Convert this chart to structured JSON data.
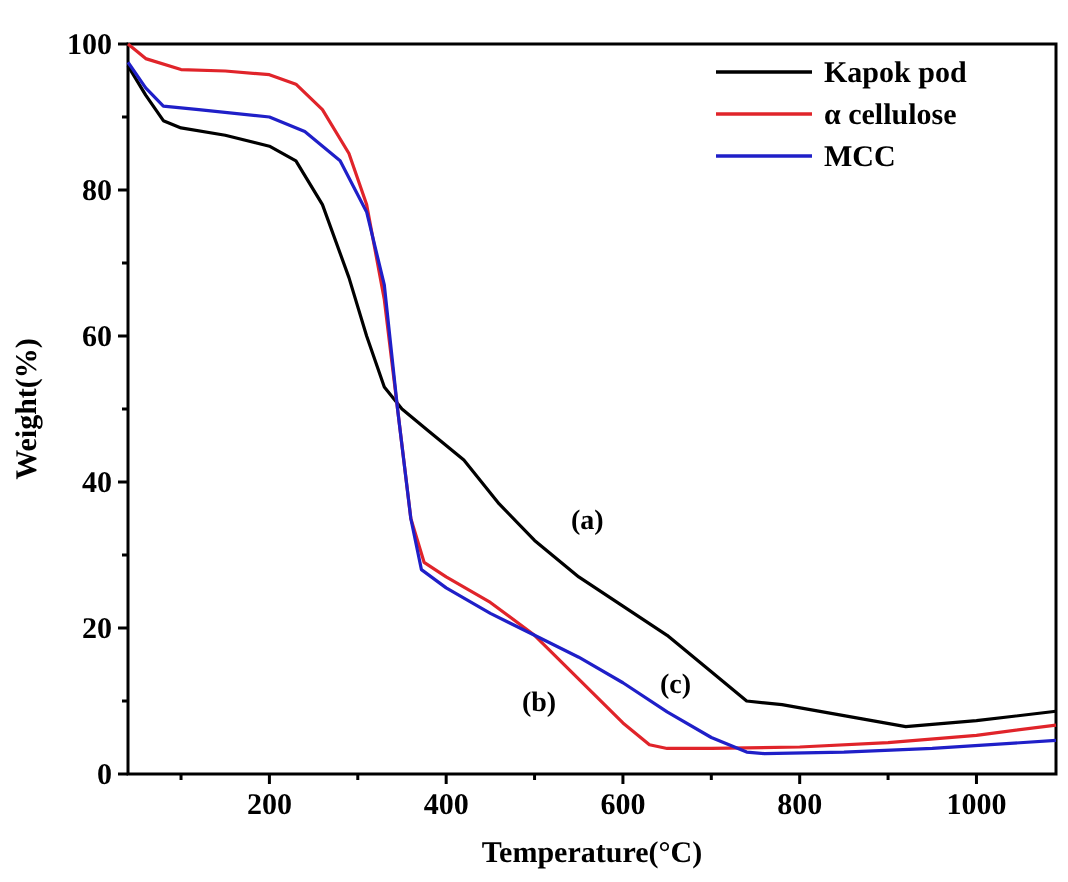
{
  "chart_data": {
    "type": "line",
    "xlabel": "Temperature(°C)",
    "ylabel": "Weight(%)",
    "xlim": [
      40,
      1090
    ],
    "ylim": [
      0,
      100
    ],
    "xticks": [
      {
        "value": 100,
        "label": null
      },
      200,
      {
        "value": 300,
        "label": null
      },
      400,
      {
        "value": 500,
        "label": null
      },
      600,
      {
        "value": 700,
        "label": null
      },
      800,
      {
        "value": 900,
        "label": null
      },
      1000
    ],
    "yticks": [
      0,
      {
        "value": 10,
        "label": null
      },
      20,
      {
        "value": 30,
        "label": null
      },
      40,
      {
        "value": 50,
        "label": null
      },
      60,
      {
        "value": 70,
        "label": null
      },
      80,
      {
        "value": 90,
        "label": null
      },
      100
    ],
    "grid": false,
    "legend": "top right",
    "marker": "none",
    "line_style": "solid",
    "series": [
      {
        "name": "Kapok pod",
        "color": "#000000",
        "x": [
          40,
          60,
          80,
          100,
          150,
          200,
          230,
          260,
          290,
          310,
          330,
          350,
          380,
          420,
          460,
          500,
          550,
          600,
          650,
          700,
          740,
          780,
          850,
          920,
          1000,
          1090
        ],
        "values": [
          97,
          93,
          89.5,
          88.5,
          87.5,
          86,
          84,
          78,
          68,
          60,
          53,
          50,
          47,
          43,
          37,
          32,
          27,
          23,
          19,
          14,
          10,
          9.5,
          8,
          6.5,
          7.3,
          8.6
        ]
      },
      {
        "name": "α cellulose",
        "color": "#e0242a",
        "x": [
          40,
          60,
          100,
          150,
          200,
          230,
          260,
          290,
          310,
          330,
          345,
          360,
          375,
          400,
          450,
          500,
          550,
          600,
          630,
          650,
          700,
          800,
          900,
          1000,
          1090
        ],
        "values": [
          100,
          98,
          96.5,
          96.3,
          95.8,
          94.5,
          91,
          85,
          78,
          65,
          50,
          35,
          29,
          27,
          23.5,
          19,
          13,
          7,
          4,
          3.5,
          3.5,
          3.7,
          4.3,
          5.3,
          6.7
        ]
      },
      {
        "name": "MCC",
        "color": "#1f1fc8",
        "x": [
          40,
          60,
          80,
          120,
          200,
          240,
          280,
          310,
          330,
          345,
          360,
          372,
          400,
          450,
          500,
          550,
          600,
          650,
          700,
          740,
          760,
          850,
          950,
          1090
        ],
        "values": [
          97.5,
          94,
          91.5,
          91,
          90,
          88,
          84,
          77,
          67,
          50,
          35,
          28,
          25.5,
          22,
          19,
          16,
          12.5,
          8.5,
          5,
          3,
          2.8,
          3,
          3.5,
          4.6
        ]
      }
    ],
    "annotations": [
      "(a)",
      "(b)",
      "(c)"
    ]
  }
}
